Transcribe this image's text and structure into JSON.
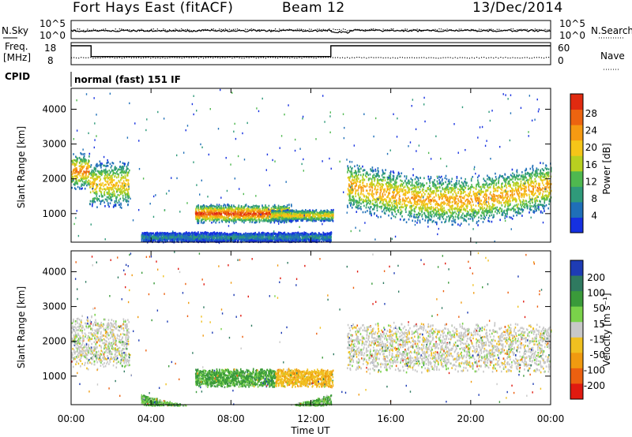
{
  "header": {
    "station": "Fort Hays East (fitACF)",
    "beam": "Beam 12",
    "date": "13/Dec/2014"
  },
  "noise_panel": {
    "left_label": "N.Sky",
    "right_label": "N.Search",
    "left_ticks": [
      "10^5",
      "10^0"
    ],
    "right_ticks": [
      "10^5",
      "10^0"
    ]
  },
  "freq_panel": {
    "left_label_1": "Freq.",
    "left_label_2": "[MHz]",
    "left_ticks": [
      "18",
      "8"
    ],
    "right_label": "Nave",
    "right_ticks": [
      "60",
      "0"
    ]
  },
  "cpid_panel": {
    "label": "CPID",
    "value": "normal (fast) 151 IF"
  },
  "power_panel": {
    "ylabel": "Slant Range [km]",
    "cbar_label": "Power [dB]",
    "cbar_ticks": [
      "28",
      "24",
      "20",
      "16",
      "12",
      "8",
      "4"
    ]
  },
  "velocity_panel": {
    "ylabel": "Slant Range [km]",
    "cbar_label": "Velocity [m s⁻¹]",
    "cbar_ticks": [
      "200",
      "100",
      "50",
      "15",
      "-15",
      "-50",
      "-100",
      "-200"
    ]
  },
  "xaxis": {
    "label": "Time UT",
    "ticks": [
      "00:00",
      "04:00",
      "08:00",
      "12:00",
      "16:00",
      "20:00",
      "00:00"
    ]
  },
  "chart_data": [
    {
      "type": "heatmap",
      "title": "Power [dB]",
      "xlabel": "Time UT",
      "ylabel": "Slant Range [km]",
      "xlim_hours": [
        0,
        24
      ],
      "ylim": [
        180,
        4600
      ],
      "yticks": [
        1000,
        2000,
        3000,
        4000
      ],
      "colorbar": {
        "label": "Power [dB]",
        "range": [
          0,
          30
        ],
        "ticks": [
          4,
          8,
          12,
          16,
          20,
          24,
          28
        ],
        "colors": [
          "#1530e0",
          "#1f6fb8",
          "#2f9a7a",
          "#4fb84f",
          "#b8d020",
          "#f5c518",
          "#f59a12",
          "#ec6410",
          "#e02a10"
        ]
      },
      "echo_regions": [
        {
          "t": [
            0.0,
            0.9
          ],
          "range": [
            1700,
            2800
          ],
          "peak_db": 26
        },
        {
          "t": [
            0.9,
            2.9
          ],
          "range": [
            1150,
            2600
          ],
          "peak_db": 22
        },
        {
          "t": [
            6.2,
            11.0
          ],
          "range": [
            750,
            1300
          ],
          "peak_db": 30
        },
        {
          "t": [
            10.0,
            13.1
          ],
          "range": [
            800,
            1150
          ],
          "peak_db": 22
        },
        {
          "t": [
            13.8,
            24.0
          ],
          "range": [
            1100,
            2600
          ],
          "peak_db": 24
        },
        {
          "t": [
            3.5,
            13.0
          ],
          "range": [
            200,
            500
          ],
          "peak_db": 10
        }
      ]
    },
    {
      "type": "heatmap",
      "title": "Velocity [m s⁻¹]",
      "xlabel": "Time UT",
      "ylabel": "Slant Range [km]",
      "xlim_hours": [
        0,
        24
      ],
      "ylim": [
        180,
        4600
      ],
      "yticks": [
        1000,
        2000,
        3000,
        4000
      ],
      "colorbar": {
        "label": "Velocity [m s⁻¹]",
        "range": [
          -250,
          250
        ],
        "ticks": [
          200,
          100,
          50,
          15,
          -15,
          -50,
          -100,
          -200
        ]
      },
      "echo_regions": [
        {
          "t": [
            0.0,
            2.9
          ],
          "range": [
            1200,
            2800
          ],
          "velocity": 0
        },
        {
          "t": [
            6.2,
            10.2
          ],
          "range": [
            700,
            1250
          ],
          "velocity": 40
        },
        {
          "t": [
            10.2,
            13.1
          ],
          "range": [
            700,
            1250
          ],
          "velocity": -40
        },
        {
          "t": [
            13.8,
            24.0
          ],
          "range": [
            1100,
            2600
          ],
          "velocity": 0
        },
        {
          "t": [
            3.5,
            13.0
          ],
          "range": [
            200,
            500
          ],
          "velocity": 30
        }
      ]
    },
    {
      "type": "line",
      "title": "Freq.",
      "ylabel": "[MHz]",
      "x_hours": [
        0,
        1.0,
        1.0,
        13.0,
        13.0,
        24
      ],
      "freq_mhz": [
        18,
        18,
        10.4,
        10.4,
        18,
        18
      ]
    }
  ]
}
